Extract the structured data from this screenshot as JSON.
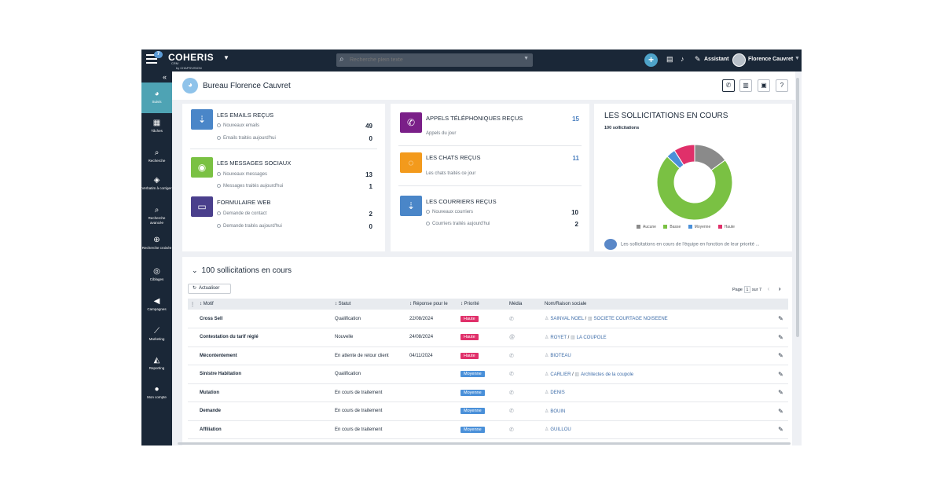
{
  "topbar": {
    "menu_badge": "7",
    "logo": "COHERIS",
    "logo_sub": "CRM",
    "logo_by": "by CHAPSVISION",
    "search_placeholder": "Recherche plein texte",
    "assistant_label": "Assistant",
    "user_name": "Florence Cauvret"
  },
  "sidebar": {
    "items": [
      {
        "label": "Suivis",
        "icon": "dashboard-icon",
        "glyph": "◕"
      },
      {
        "label": "Tâches",
        "icon": "calendar-icon",
        "glyph": "▦"
      },
      {
        "label": "Recherche",
        "icon": "search-icon",
        "glyph": "⌕"
      },
      {
        "label": "Verbatim à corriger",
        "icon": "shield-icon",
        "glyph": "◈"
      },
      {
        "label": "Recherche avancée",
        "icon": "search-advanced-icon",
        "glyph": "⌕"
      },
      {
        "label": "Recherche croisée",
        "icon": "search-cross-icon",
        "glyph": "⊕"
      },
      {
        "label": "Ciblages",
        "icon": "target-icon",
        "glyph": "◎"
      },
      {
        "label": "Campagnes",
        "icon": "megaphone-icon",
        "glyph": "◀"
      },
      {
        "label": "Marketing",
        "icon": "chart-line-icon",
        "glyph": "⟋"
      },
      {
        "label": "Reporting",
        "icon": "area-chart-icon",
        "glyph": "◭"
      },
      {
        "label": "Mon compte",
        "icon": "user-icon",
        "glyph": "●"
      }
    ]
  },
  "header": {
    "title": "Bureau Florence Cauvret"
  },
  "emails": {
    "title": "LES EMAILS REÇUS",
    "row1_label": "Nouveaux emails",
    "row1_value": "49",
    "row2_label": "Emails traités aujourd'hui",
    "row2_value": "0"
  },
  "social": {
    "title": "LES MESSAGES SOCIAUX",
    "row1_label": "Nouveaux messages",
    "row1_value": "13",
    "row2_label": "Messages traités aujourd'hui",
    "row2_value": "1"
  },
  "webform": {
    "title": "FORMULAIRE WEB",
    "row1_label": "Demande de contact",
    "row1_value": "2",
    "row2_label": "Demande traités aujourd'hui",
    "row2_value": "0"
  },
  "calls": {
    "title": "APPELS TÉLÉPHONIQUES REÇUS",
    "sub": "Appels du jour",
    "value": "15"
  },
  "chats": {
    "title": "LES CHATS REÇUS",
    "sub": "Les chats traités ce jour",
    "value": "11"
  },
  "mail": {
    "title": "LES COURRIERS REÇUS",
    "row1_label": "Nouveaux courriers",
    "row1_value": "10",
    "row2_label": "Courriers traités aujourd'hui",
    "row2_value": "2"
  },
  "sollicitations": {
    "title": "LES SOLLICITATIONS EN COURS",
    "subtitle": "100 sollicitations",
    "note": "Les sollicitations en cours de l'équipe en fonction de leur priorité ..."
  },
  "chart_data": {
    "type": "pie",
    "title": "LES SOLLICITATIONS EN COURS",
    "categories": [
      "Aucune",
      "Basse",
      "Moyenne",
      "Haute"
    ],
    "values": [
      15,
      72,
      4,
      9
    ],
    "colors": [
      "#8a8a8a",
      "#7ac143",
      "#4a90d9",
      "#e0306a"
    ],
    "legend": "bottom"
  },
  "list": {
    "title": "100 sollicitations en cours",
    "refresh_label": "Actualiser",
    "page_label": "Page",
    "page_value": "1",
    "page_total": "sur 7",
    "columns": [
      "Motif",
      "Statut",
      "Réponse pour le",
      "Priorité",
      "Média",
      "Nom/Raison sociale"
    ],
    "rows": [
      {
        "motif": "Cross Sell",
        "statut": "Qualification",
        "date": "22/08/2024",
        "priorite": "Haute",
        "color": "#e0306a",
        "media": "phone",
        "nom": "SAINVAL NOEL",
        "societe": "SOCIETE COURTAGE NOISEENE"
      },
      {
        "motif": "Contestation du tarif réglé",
        "statut": "Nouvelle",
        "date": "24/08/2024",
        "priorite": "Haute",
        "color": "#e0306a",
        "media": "at",
        "nom": "ROYET",
        "societe": "LA COUPOLE"
      },
      {
        "motif": "Mécontentement",
        "statut": "En attente de retour client",
        "date": "04/11/2024",
        "priorite": "Haute",
        "color": "#e0306a",
        "media": "phone",
        "nom": "BIOTEAU",
        "societe": ""
      },
      {
        "motif": "Sinistre Habitation",
        "statut": "Qualification",
        "date": "",
        "priorite": "Moyenne",
        "color": "#4a90d9",
        "media": "phone",
        "nom": "CARLIER",
        "societe": "Architectes de la coupole"
      },
      {
        "motif": "Mutation",
        "statut": "En cours de traitement",
        "date": "",
        "priorite": "Moyenne",
        "color": "#4a90d9",
        "media": "phone",
        "nom": "DENIS",
        "societe": ""
      },
      {
        "motif": "Demande",
        "statut": "En cours de traitement",
        "date": "",
        "priorite": "Moyenne",
        "color": "#4a90d9",
        "media": "phone",
        "nom": "BOUIN",
        "societe": ""
      },
      {
        "motif": "Affiliation",
        "statut": "En cours de traitement",
        "date": "",
        "priorite": "Moyenne",
        "color": "#4a90d9",
        "media": "phone",
        "nom": "GUILLOU",
        "societe": ""
      }
    ]
  }
}
